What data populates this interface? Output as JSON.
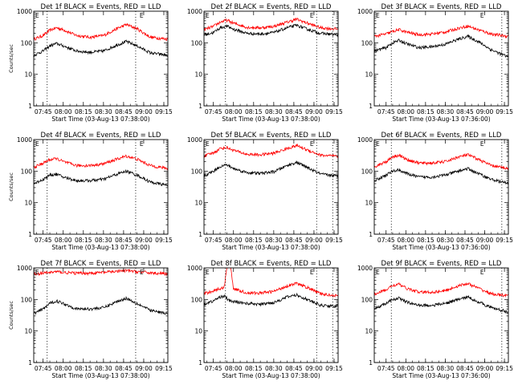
{
  "colors": {
    "events": "#000000",
    "lld": "#ff0000",
    "background": "#ffffff"
  },
  "chart_data": [
    {
      "type": "line",
      "title": "Det 1f BLACK = Events, RED = LLD",
      "xlabel": "Start Time (03-Aug-13 07:38:00)",
      "ylabel": "Counts/sec",
      "yscale": "log",
      "ylim": [
        1,
        1000
      ],
      "xlim": [
        "07:38",
        "09:18"
      ],
      "x_tick_labels": [
        "07:45",
        "08:00",
        "08:15",
        "08:30",
        "08:45",
        "09:00",
        "09:15"
      ],
      "y_tick_labels": [
        "1",
        "10",
        "100",
        "1000"
      ],
      "corner_marks": {
        "left": "E",
        "right": "E"
      },
      "vertical_dotted_lines": [
        "07:48",
        "08:54"
      ],
      "x": [
        "07:38",
        "07:45",
        "07:50",
        "07:55",
        "08:00",
        "08:10",
        "08:20",
        "08:30",
        "08:40",
        "08:47",
        "08:55",
        "09:05",
        "09:18"
      ],
      "series": [
        {
          "color": "red",
          "values": [
            130,
            170,
            250,
            300,
            260,
            170,
            150,
            170,
            280,
            380,
            280,
            150,
            130
          ]
        },
        {
          "color": "black",
          "values": [
            40,
            55,
            80,
            95,
            80,
            55,
            50,
            55,
            85,
            110,
            80,
            48,
            40
          ]
        }
      ]
    },
    {
      "type": "line",
      "title": "Det 2f BLACK = Events, RED = LLD",
      "xlabel": "Start Time (03-Aug-13 07:38:00)",
      "ylabel": "",
      "yscale": "log",
      "ylim": [
        1,
        1000
      ],
      "xlim": [
        "07:38",
        "09:18"
      ],
      "x_tick_labels": [
        "07:45",
        "08:00",
        "08:15",
        "08:30",
        "08:45",
        "09:00",
        "09:15"
      ],
      "y_tick_labels": [
        "1",
        "10",
        "100",
        "1000"
      ],
      "corner_marks": {
        "left": "E",
        "right": "E"
      },
      "vertical_dotted_lines": [
        "07:54",
        "09:02",
        "09:14"
      ],
      "x": [
        "07:38",
        "07:45",
        "07:50",
        "07:55",
        "08:00",
        "08:10",
        "08:20",
        "08:30",
        "08:40",
        "08:47",
        "08:55",
        "09:05",
        "09:18"
      ],
      "series": [
        {
          "color": "red",
          "values": [
            260,
            330,
            450,
            520,
            420,
            310,
            300,
            330,
            450,
            560,
            420,
            300,
            270
          ]
        },
        {
          "color": "black",
          "values": [
            180,
            210,
            300,
            340,
            270,
            200,
            190,
            210,
            300,
            360,
            270,
            200,
            180
          ]
        }
      ]
    },
    {
      "type": "line",
      "title": "Det 3f BLACK = Events, RED = LLD",
      "xlabel": "Start Time (03-Aug-13 07:36:00)",
      "ylabel": "",
      "yscale": "log",
      "ylim": [
        1,
        1000
      ],
      "xlim": [
        "07:36",
        "09:18"
      ],
      "x_tick_labels": [
        "07:45",
        "08:00",
        "08:15",
        "08:30",
        "08:45",
        "09:00",
        "09:15"
      ],
      "y_tick_labels": [
        "1",
        "10",
        "100",
        "1000"
      ],
      "corner_marks": {
        "left": "E",
        "right": "E"
      },
      "vertical_dotted_lines": [
        "07:49",
        "09:13"
      ],
      "x": [
        "07:36",
        "07:45",
        "07:50",
        "07:55",
        "08:00",
        "08:10",
        "08:20",
        "08:30",
        "08:40",
        "08:47",
        "08:55",
        "09:05",
        "09:18"
      ],
      "series": [
        {
          "color": "red",
          "values": [
            160,
            190,
            230,
            260,
            220,
            180,
            190,
            220,
            290,
            340,
            260,
            190,
            160
          ]
        },
        {
          "color": "black",
          "values": [
            55,
            70,
            100,
            120,
            95,
            70,
            75,
            90,
            130,
            160,
            110,
            60,
            35
          ]
        }
      ]
    },
    {
      "type": "line",
      "title": "Det 4f BLACK = Events, RED = LLD",
      "xlabel": "Start Time (03-Aug-13 07:38:00)",
      "ylabel": "Counts/sec",
      "yscale": "log",
      "ylim": [
        1,
        1000
      ],
      "xlim": [
        "07:38",
        "09:18"
      ],
      "x_tick_labels": [
        "07:45",
        "08:00",
        "08:15",
        "08:30",
        "08:45",
        "09:00",
        "09:15"
      ],
      "y_tick_labels": [
        "1",
        "10",
        "100",
        "1000"
      ],
      "corner_marks": {
        "left": "E",
        "right": "E"
      },
      "vertical_dotted_lines": [
        "07:48",
        "08:54"
      ],
      "x": [
        "07:38",
        "07:45",
        "07:50",
        "07:55",
        "08:00",
        "08:10",
        "08:20",
        "08:30",
        "08:40",
        "08:47",
        "08:55",
        "09:05",
        "09:18"
      ],
      "series": [
        {
          "color": "red",
          "values": [
            130,
            180,
            230,
            250,
            200,
            150,
            150,
            170,
            240,
            300,
            240,
            150,
            120
          ]
        },
        {
          "color": "black",
          "values": [
            40,
            55,
            75,
            80,
            65,
            50,
            50,
            55,
            80,
            100,
            75,
            45,
            35
          ]
        }
      ]
    },
    {
      "type": "line",
      "title": "Det 5f BLACK = Events, RED = LLD",
      "xlabel": "Start Time (03-Aug-13 07:38:00)",
      "ylabel": "",
      "yscale": "log",
      "ylim": [
        1,
        1000
      ],
      "xlim": [
        "07:38",
        "09:18"
      ],
      "x_tick_labels": [
        "07:45",
        "08:00",
        "08:15",
        "08:30",
        "08:45",
        "09:00",
        "09:15"
      ],
      "y_tick_labels": [
        "1",
        "10",
        "100",
        "1000"
      ],
      "corner_marks": {
        "left": "E",
        "right": "E"
      },
      "vertical_dotted_lines": [
        "07:54",
        "09:02",
        "09:14"
      ],
      "x": [
        "07:38",
        "07:45",
        "07:50",
        "07:55",
        "08:00",
        "08:10",
        "08:20",
        "08:30",
        "08:40",
        "08:47",
        "08:55",
        "09:05",
        "09:18"
      ],
      "series": [
        {
          "color": "red",
          "values": [
            300,
            380,
            520,
            560,
            460,
            340,
            330,
            370,
            520,
            650,
            470,
            320,
            290
          ]
        },
        {
          "color": "black",
          "values": [
            70,
            100,
            140,
            160,
            120,
            90,
            85,
            95,
            150,
            190,
            130,
            80,
            70
          ]
        }
      ]
    },
    {
      "type": "line",
      "title": "Det 6f BLACK = Events, RED = LLD",
      "xlabel": "Start Time (03-Aug-13 07:36:00)",
      "ylabel": "",
      "yscale": "log",
      "ylim": [
        1,
        1000
      ],
      "xlim": [
        "07:36",
        "09:18"
      ],
      "x_tick_labels": [
        "07:45",
        "08:00",
        "08:15",
        "08:30",
        "08:45",
        "09:00",
        "09:15"
      ],
      "y_tick_labels": [
        "1",
        "10",
        "100",
        "1000"
      ],
      "corner_marks": {
        "left": "E",
        "right": "E"
      },
      "vertical_dotted_lines": [
        "07:49",
        "09:13"
      ],
      "x": [
        "07:36",
        "07:45",
        "07:50",
        "07:55",
        "08:00",
        "08:10",
        "08:20",
        "08:30",
        "08:40",
        "08:47",
        "08:55",
        "09:05",
        "09:18"
      ],
      "series": [
        {
          "color": "red",
          "values": [
            140,
            200,
            290,
            320,
            240,
            180,
            180,
            200,
            280,
            330,
            240,
            150,
            120
          ]
        },
        {
          "color": "black",
          "values": [
            50,
            75,
            100,
            110,
            85,
            65,
            65,
            75,
            100,
            120,
            85,
            55,
            40
          ]
        }
      ]
    },
    {
      "type": "line",
      "title": "Det 7f BLACK = Events, RED = LLD",
      "xlabel": "Start Time (03-Aug-13 07:38:00)",
      "ylabel": "Counts/sec",
      "yscale": "log",
      "ylim": [
        1,
        1000
      ],
      "xlim": [
        "07:38",
        "09:18"
      ],
      "x_tick_labels": [
        "07:45",
        "08:00",
        "08:15",
        "08:30",
        "08:45",
        "09:00",
        "09:15"
      ],
      "y_tick_labels": [
        "1",
        "10",
        "100",
        "1000"
      ],
      "corner_marks": {
        "left": "E",
        "right": "E"
      },
      "vertical_dotted_lines": [
        "07:48",
        "08:54"
      ],
      "x": [
        "07:38",
        "07:45",
        "07:50",
        "07:55",
        "08:00",
        "08:10",
        "08:20",
        "08:30",
        "08:40",
        "08:47",
        "08:55",
        "09:05",
        "09:18"
      ],
      "series": [
        {
          "color": "red",
          "values": [
            650,
            680,
            720,
            760,
            720,
            680,
            680,
            720,
            780,
            820,
            760,
            700,
            650
          ]
        },
        {
          "color": "black",
          "values": [
            35,
            50,
            75,
            90,
            75,
            50,
            50,
            55,
            85,
            110,
            75,
            45,
            35
          ]
        }
      ]
    },
    {
      "type": "line",
      "title": "Det 8f BLACK = Events, RED = LLD",
      "xlabel": "Start Time (03-Aug-13 07:38:00)",
      "ylabel": "",
      "yscale": "log",
      "ylim": [
        1,
        1000
      ],
      "xlim": [
        "07:38",
        "09:18"
      ],
      "x_tick_labels": [
        "07:45",
        "08:00",
        "08:15",
        "08:30",
        "08:45",
        "09:00",
        "09:15"
      ],
      "y_tick_labels": [
        "1",
        "10",
        "100",
        "1000"
      ],
      "corner_marks": {
        "left": "E",
        "right": "E"
      },
      "vertical_dotted_lines": [
        "07:54",
        "09:02",
        "09:14"
      ],
      "x": [
        "07:38",
        "07:45",
        "07:50",
        "07:53",
        "07:55",
        "07:56",
        "07:58",
        "08:00",
        "08:10",
        "08:20",
        "08:30",
        "08:40",
        "08:47",
        "08:55",
        "09:05",
        "09:18"
      ],
      "series": [
        {
          "color": "red",
          "values": [
            150,
            190,
            220,
            240,
            1000,
            1000,
            1000,
            220,
            160,
            160,
            180,
            270,
            320,
            240,
            150,
            130
          ]
        },
        {
          "color": "black",
          "values": [
            70,
            90,
            120,
            130,
            110,
            95,
            90,
            85,
            75,
            70,
            80,
            120,
            140,
            100,
            65,
            60
          ]
        }
      ]
    },
    {
      "type": "line",
      "title": "Det 9f BLACK = Events, RED = LLD",
      "xlabel": "Start Time (03-Aug-13 07:36:00)",
      "ylabel": "",
      "yscale": "log",
      "ylim": [
        1,
        1000
      ],
      "xlim": [
        "07:36",
        "09:18"
      ],
      "x_tick_labels": [
        "07:45",
        "08:00",
        "08:15",
        "08:30",
        "08:45",
        "09:00",
        "09:15"
      ],
      "y_tick_labels": [
        "1",
        "10",
        "100",
        "1000"
      ],
      "corner_marks": {
        "left": "E",
        "right": "E"
      },
      "vertical_dotted_lines": [
        "07:49",
        "09:13"
      ],
      "x": [
        "07:36",
        "07:45",
        "07:50",
        "07:55",
        "08:00",
        "08:10",
        "08:20",
        "08:30",
        "08:40",
        "08:47",
        "08:55",
        "09:05",
        "09:18"
      ],
      "series": [
        {
          "color": "red",
          "values": [
            150,
            200,
            280,
            300,
            230,
            170,
            170,
            190,
            270,
            320,
            230,
            150,
            130
          ]
        },
        {
          "color": "black",
          "values": [
            50,
            75,
            100,
            110,
            85,
            65,
            65,
            75,
            100,
            120,
            85,
            55,
            40
          ]
        }
      ]
    }
  ]
}
